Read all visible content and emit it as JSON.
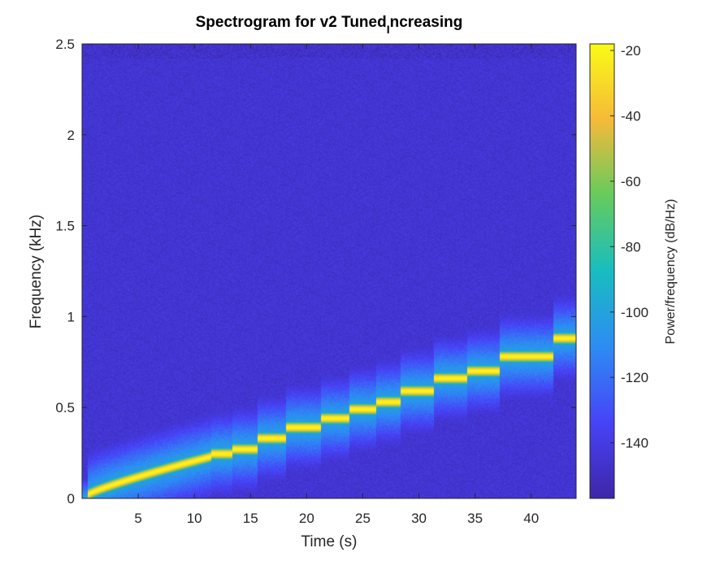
{
  "chart_data": {
    "type": "heatmap",
    "title": "Spectrogram for v2 Tuned",
    "title_subscript": "I",
    "title_suffix": "ncreasing",
    "xlabel": "Time (s)",
    "ylabel": "Frequency (kHz)",
    "xlim": [
      0,
      44
    ],
    "ylim": [
      0,
      2.5
    ],
    "xticks": [
      5,
      10,
      15,
      20,
      25,
      30,
      35,
      40
    ],
    "yticks": [
      0,
      0.5,
      1,
      1.5,
      2,
      2.5
    ],
    "ytick_labels": [
      "0",
      "0.5",
      "1",
      "1.5",
      "2",
      "2.5"
    ],
    "colorbar": {
      "label": "Power/frequency (dB/Hz)",
      "range": [
        -157,
        -18
      ],
      "ticks": [
        -20,
        -40,
        -60,
        -80,
        -100,
        -120,
        -140
      ],
      "colormap": "parula",
      "colors": [
        "#3e26a8",
        "#4743f8",
        "#2d8cf4",
        "#18bdc0",
        "#66cb5d",
        "#f6ba39",
        "#f9fb15"
      ]
    },
    "background_level_db": -145,
    "tone_peak_db": -20,
    "glide": {
      "t_start": 0.5,
      "t_end": 11.5,
      "f_start_khz": 0.02,
      "f_end_khz": 0.23
    },
    "steps": [
      {
        "t_start": 11.5,
        "t_end": 13.4,
        "f_khz": 0.245
      },
      {
        "t_start": 13.4,
        "t_end": 15.6,
        "f_khz": 0.27
      },
      {
        "t_start": 15.6,
        "t_end": 18.2,
        "f_khz": 0.33
      },
      {
        "t_start": 18.2,
        "t_end": 21.3,
        "f_khz": 0.39
      },
      {
        "t_start": 21.3,
        "t_end": 23.8,
        "f_khz": 0.44
      },
      {
        "t_start": 23.8,
        "t_end": 26.2,
        "f_khz": 0.49
      },
      {
        "t_start": 26.2,
        "t_end": 28.4,
        "f_khz": 0.53
      },
      {
        "t_start": 28.4,
        "t_end": 31.3,
        "f_khz": 0.59
      },
      {
        "t_start": 31.3,
        "t_end": 34.3,
        "f_khz": 0.66
      },
      {
        "t_start": 34.3,
        "t_end": 37.2,
        "f_khz": 0.7
      },
      {
        "t_start": 37.2,
        "t_end": 42.0,
        "f_khz": 0.78
      },
      {
        "t_start": 42.0,
        "t_end": 44.0,
        "f_khz": 0.88
      }
    ]
  }
}
